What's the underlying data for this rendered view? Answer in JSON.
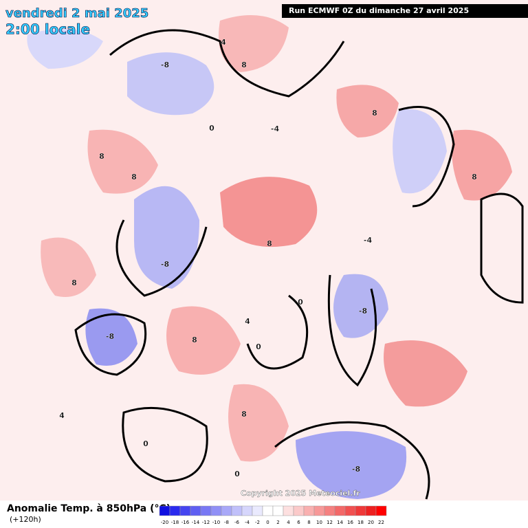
{
  "header": {
    "date": "vendredi 2 mai 2025",
    "time": "2:00 locale",
    "run": "Run ECMWF 0Z du dimanche 27 avril 2025"
  },
  "copyright": "Copyright 2025 Meteociel.fr",
  "legend": {
    "title": "Anomalie Temp. à 850hPa (°C)",
    "lead": "(+120h)",
    "ticks": [
      -20,
      -18,
      -16,
      -14,
      -12,
      -10,
      -8,
      -6,
      -4,
      -2,
      0,
      2,
      4,
      6,
      8,
      10,
      12,
      14,
      16,
      18,
      20,
      22
    ],
    "colors": [
      "#1010e0",
      "#2a2aee",
      "#4545f0",
      "#5f5ff2",
      "#7878f4",
      "#9090f6",
      "#a8a8f8",
      "#c0c0fa",
      "#d6d6fc",
      "#eaeafe",
      "#ffffff",
      "#ffffff",
      "#fde0e0",
      "#fbcaca",
      "#f9b0b0",
      "#f79898",
      "#f58080",
      "#f36868",
      "#f15050",
      "#ef3838",
      "#ed2020",
      "#ff0000"
    ]
  },
  "contour_labels": [
    -8,
    8,
    4,
    -4,
    0,
    8,
    8,
    8,
    -8,
    -8,
    8,
    8,
    -8,
    8,
    8,
    0,
    0,
    -4,
    4,
    8,
    0,
    4,
    0,
    -8
  ]
}
